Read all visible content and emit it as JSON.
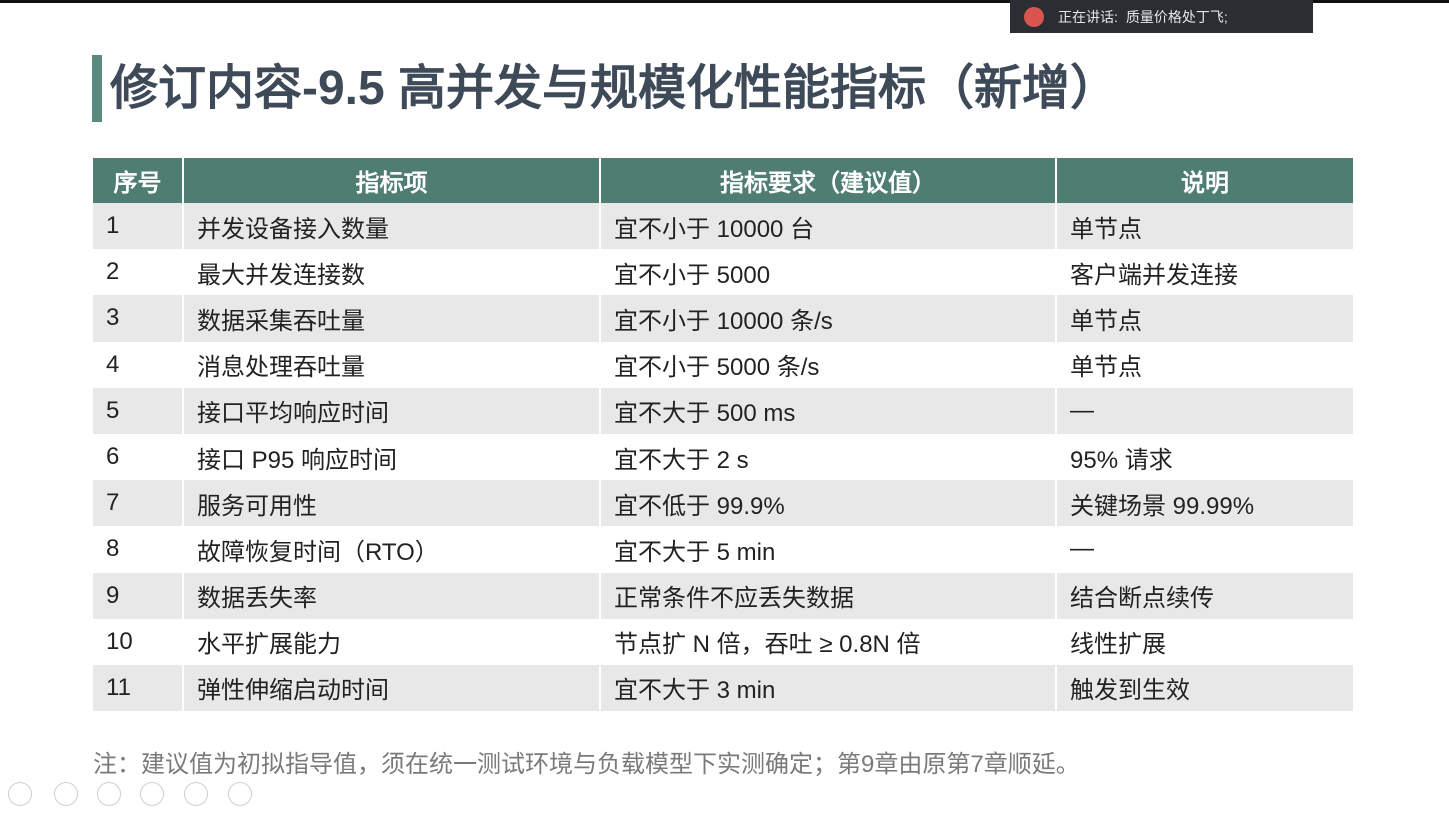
{
  "meeting_bar": {
    "label": "正在讲话:",
    "speaker": "质量价格处丁飞;"
  },
  "slide": {
    "title": "修订内容-9.5 高并发与规模化性能指标（新增）",
    "table": {
      "header": [
        "序号",
        "指标项",
        "指标要求（建议值）",
        "说明"
      ],
      "rows": [
        [
          "1",
          "并发设备接入数量",
          "宜不小于 10000 台",
          "单节点"
        ],
        [
          "2",
          "最大并发连接数",
          "宜不小于 5000",
          "客户端并发连接"
        ],
        [
          "3",
          "数据采集吞吐量",
          "宜不小于 10000 条/s",
          "单节点"
        ],
        [
          "4",
          "消息处理吞吐量",
          "宜不小于 5000 条/s",
          "单节点"
        ],
        [
          "5",
          "接口平均响应时间",
          "宜不大于 500 ms",
          "—"
        ],
        [
          "6",
          "接口 P95 响应时间",
          "宜不大于 2 s",
          "95% 请求"
        ],
        [
          "7",
          "服务可用性",
          "宜不低于 99.9%",
          "关键场景 99.99%"
        ],
        [
          "8",
          "故障恢复时间（RTO）",
          "宜不大于 5 min",
          "—"
        ],
        [
          "9",
          "数据丢失率",
          "正常条件不应丢失数据",
          "结合断点续传"
        ],
        [
          "10",
          "水平扩展能力",
          "节点扩 N 倍，吞吐 ≥ 0.8N 倍",
          "线性扩展"
        ],
        [
          "11",
          "弹性伸缩启动时间",
          "宜不大于 3 min",
          "触发到生效"
        ]
      ]
    },
    "note": "注：建议值为初拟指导值，须在统一测试环境与负载模型下实测确定；第9章由原第7章顺延。"
  }
}
